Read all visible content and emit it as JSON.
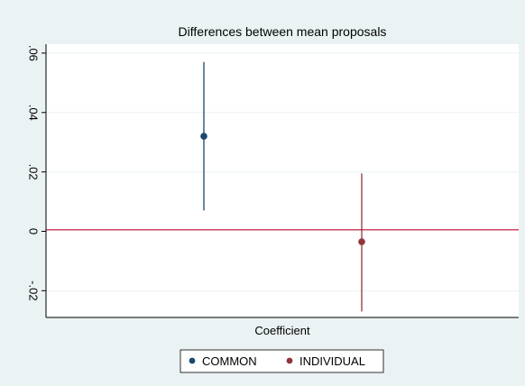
{
  "chart_data": {
    "type": "scatter",
    "title": "Differences between mean proposals",
    "xlabel": "Coefficient",
    "ylabel": "",
    "ylim": [
      -0.029,
      0.063
    ],
    "yticks": [
      {
        "value": -0.02,
        "label": "-.02"
      },
      {
        "value": 0,
        "label": "0"
      },
      {
        "value": 0.02,
        "label": ".02"
      },
      {
        "value": 0.04,
        "label": ".04"
      },
      {
        "value": 0.06,
        "label": ".06"
      }
    ],
    "reference_line": 0,
    "grid": true,
    "legend_position": "bottom",
    "series": [
      {
        "name": "COMMON",
        "x_position": "left",
        "estimate": 0.032,
        "ci_low": 0.007,
        "ci_high": 0.057,
        "color": "#1a476f"
      },
      {
        "name": "INDIVIDUAL",
        "x_position": "right",
        "estimate": -0.0035,
        "ci_low": -0.027,
        "ci_high": 0.0195,
        "color": "#90353b"
      }
    ]
  },
  "colors": {
    "background": "#eaf2f3",
    "plot_background": "#ffffff",
    "grid": "#eaf2f3",
    "reference_line": "#c10534"
  }
}
